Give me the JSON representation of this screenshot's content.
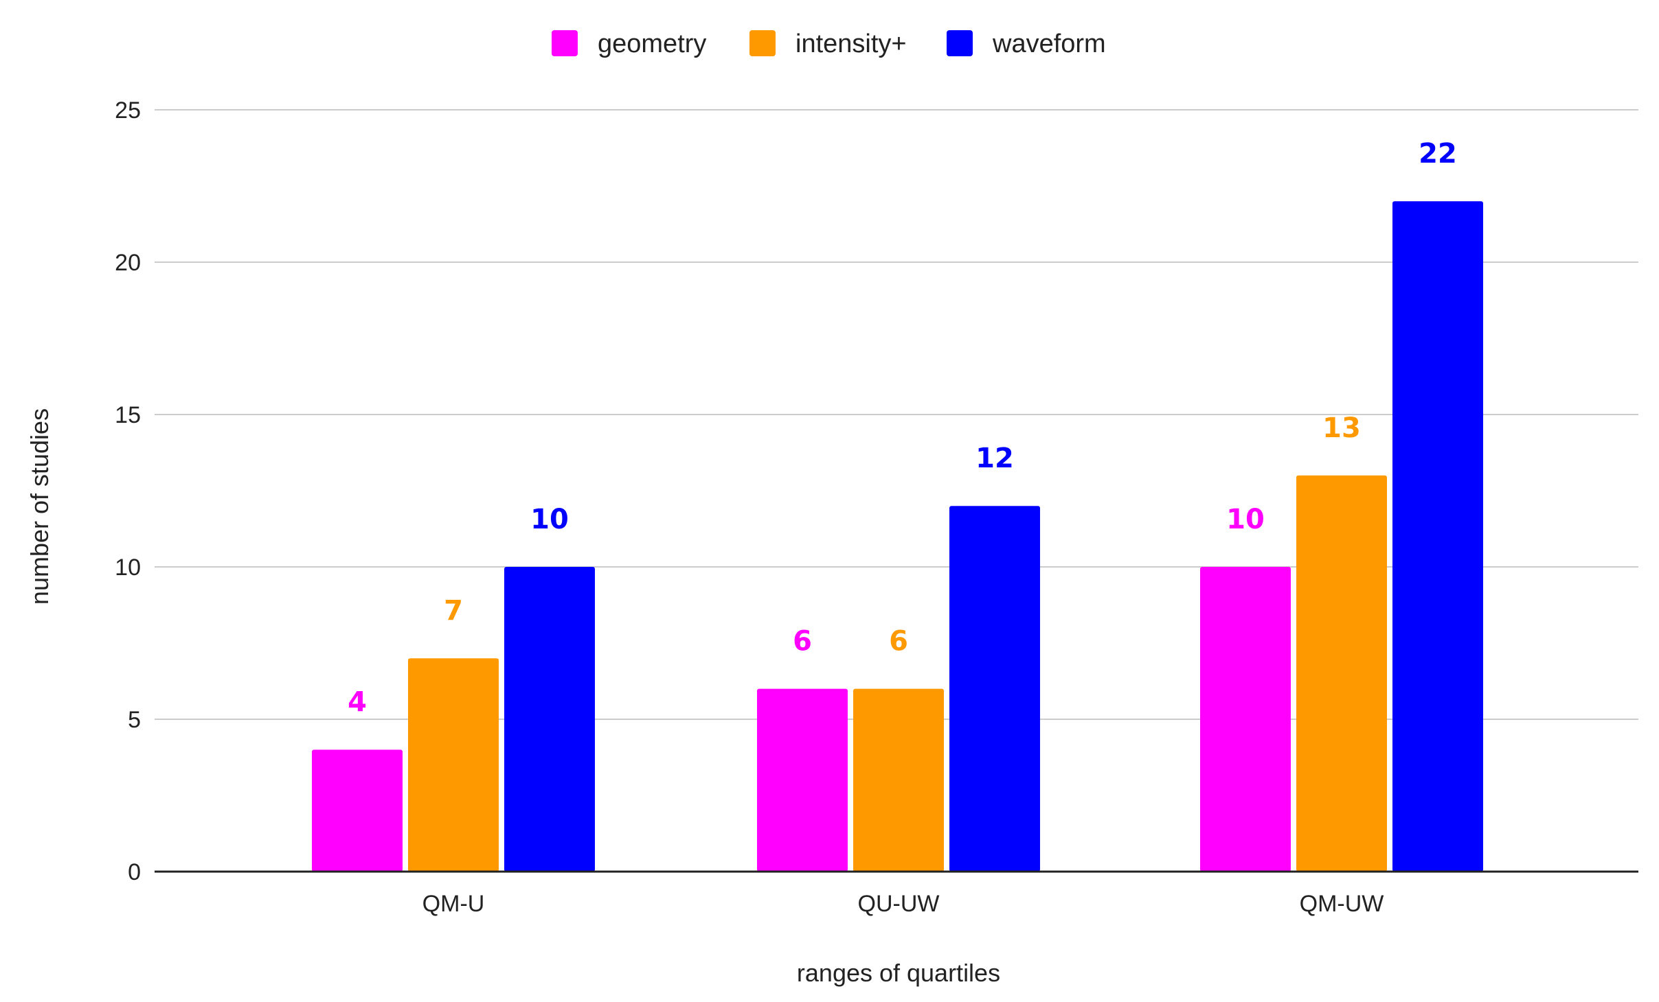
{
  "chart_data": {
    "type": "bar",
    "title": "",
    "xlabel": "ranges of quartiles",
    "ylabel": "number of studies",
    "categories": [
      "QM-U",
      "QU-UW",
      "QM-UW"
    ],
    "series": [
      {
        "name": "geometry",
        "color": "#ff00ff",
        "values": [
          4,
          6,
          10
        ]
      },
      {
        "name": "intensity+",
        "color": "#ff9900",
        "values": [
          7,
          6,
          13
        ]
      },
      {
        "name": "waveform",
        "color": "#0000ff",
        "values": [
          10,
          12,
          22
        ]
      }
    ],
    "ylim": [
      0,
      25
    ],
    "yticks": [
      0,
      5,
      10,
      15,
      20,
      25
    ],
    "grid": true,
    "legend_position": "top-center",
    "data_labels": true
  }
}
